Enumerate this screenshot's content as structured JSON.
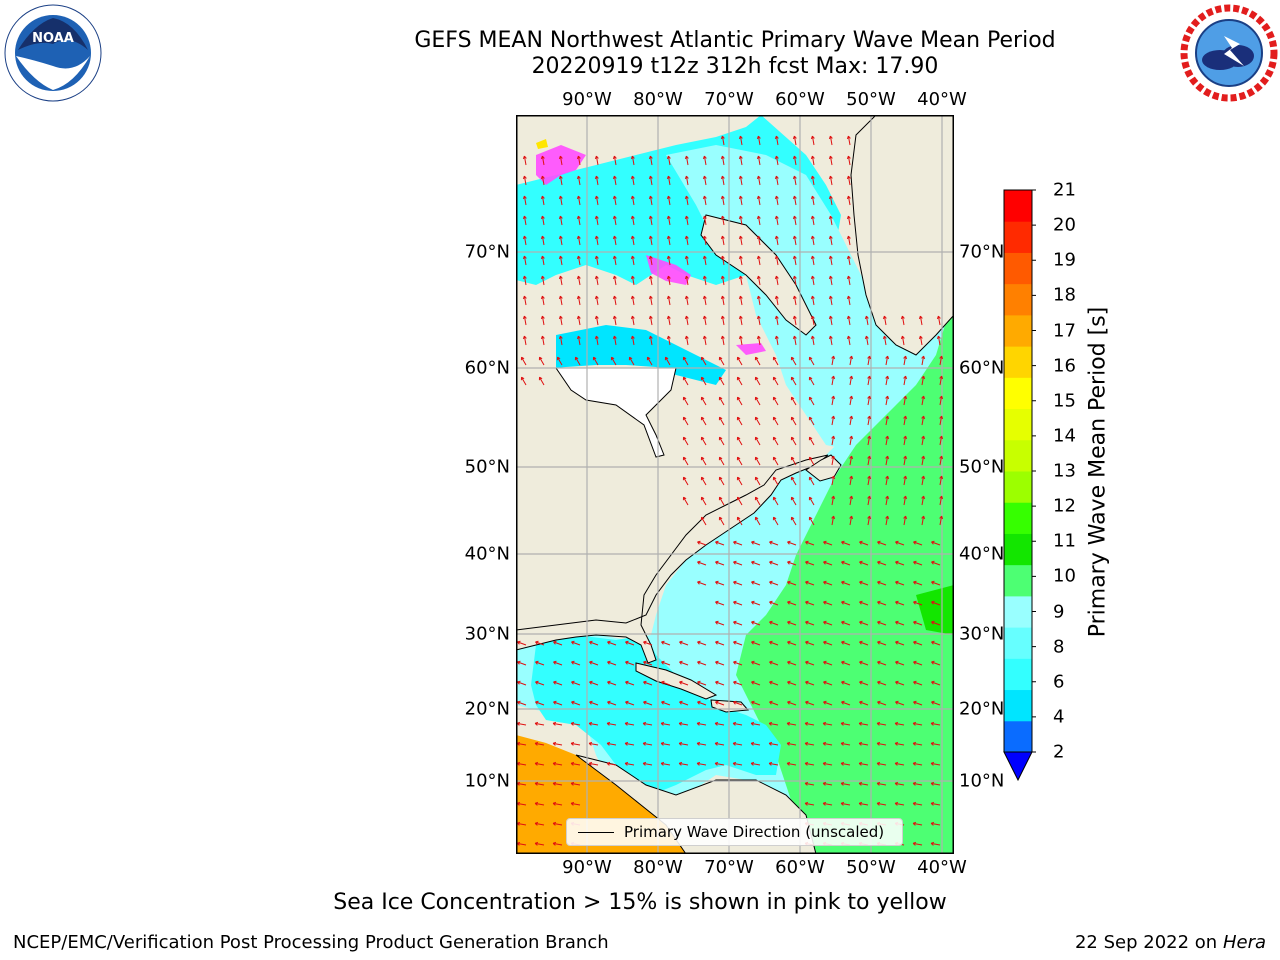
{
  "title_line1": "GEFS MEAN Northwest Atlantic Primary Wave Mean Period",
  "title_line2": "20220919 t12z 312h fcst   Max: 17.90",
  "logos": {
    "left": "NOAA",
    "right": "NATIONAL WEATHER SERVICE"
  },
  "lon_ticks": [
    "90°W",
    "80°W",
    "70°W",
    "60°W",
    "50°W",
    "40°W"
  ],
  "lat_ticks": [
    "70°N",
    "60°N",
    "50°N",
    "40°N",
    "30°N",
    "20°N",
    "10°N"
  ],
  "colorbar": {
    "label": "Primary Wave Mean Period [s]",
    "ticks": [
      "2",
      "4",
      "6",
      "8",
      "9",
      "10",
      "11",
      "12",
      "13",
      "14",
      "15",
      "16",
      "17",
      "18",
      "19",
      "20",
      "21"
    ],
    "colors": [
      "#0a6cff",
      "#00e5ff",
      "#33ffff",
      "#66ffff",
      "#99ffff",
      "#4dff73",
      "#13e600",
      "#36ff00",
      "#9cff00",
      "#c8ff00",
      "#e6ff00",
      "#ffff00",
      "#ffd500",
      "#ffaa00",
      "#ff8000",
      "#ff5a00",
      "#ff2a00",
      "#ff0000"
    ],
    "extend_color": "#0000ff"
  },
  "legend": {
    "label": "Primary Wave Direction (unscaled)"
  },
  "note": "Sea Ice Concentration > 15% is shown in pink to yellow",
  "footer_left": "NCEP/EMC/Verification Post Processing Product Generation Branch",
  "footer_right_date": "22 Sep 2022 on",
  "footer_right_host": "Hera"
}
